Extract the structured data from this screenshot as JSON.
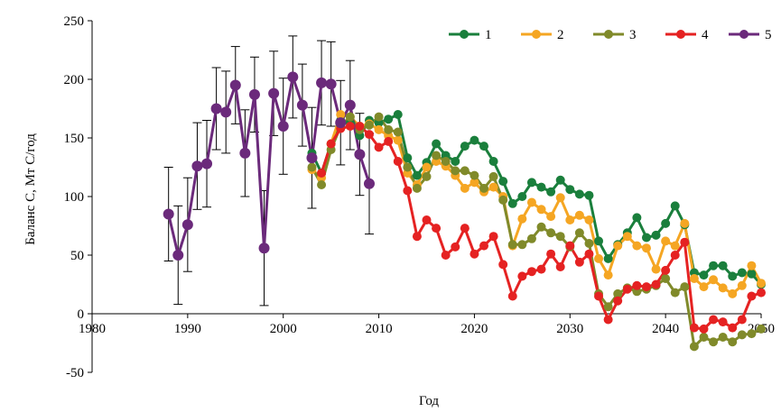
{
  "chart_data": {
    "type": "line",
    "title": "",
    "xlabel": "Год",
    "ylabel": "Баланс С, Мт С/год",
    "xlim": [
      1980,
      2050
    ],
    "ylim": [
      -50,
      250
    ],
    "xticks": [
      1980,
      1990,
      2000,
      2010,
      2020,
      2030,
      2040,
      2050
    ],
    "yticks": [
      -50,
      0,
      50,
      100,
      150,
      200,
      250
    ],
    "grid": false,
    "legend_position": "top-right",
    "series": [
      {
        "name": "1",
        "color": "#1a7f3c",
        "x": [
          2003,
          2004,
          2005,
          2006,
          2007,
          2008,
          2009,
          2010,
          2011,
          2012,
          2013,
          2014,
          2015,
          2016,
          2017,
          2018,
          2019,
          2020,
          2021,
          2022,
          2023,
          2024,
          2025,
          2026,
          2027,
          2028,
          2029,
          2030,
          2031,
          2032,
          2033,
          2034,
          2035,
          2036,
          2037,
          2038,
          2039,
          2040,
          2041,
          2042,
          2043,
          2044,
          2045,
          2046,
          2047,
          2048,
          2049,
          2050
        ],
        "y": [
          137,
          120,
          145,
          165,
          163,
          152,
          165,
          163,
          166,
          170,
          133,
          118,
          129,
          145,
          135,
          130,
          143,
          148,
          143,
          130,
          113,
          94,
          100,
          112,
          108,
          104,
          114,
          106,
          102,
          101,
          62,
          47,
          59,
          69,
          82,
          65,
          67,
          77,
          92,
          76,
          35,
          33,
          41,
          41,
          32,
          35,
          34,
          25
        ]
      },
      {
        "name": "2",
        "color": "#f5a623",
        "x": [
          2003,
          2004,
          2005,
          2006,
          2007,
          2008,
          2009,
          2010,
          2011,
          2012,
          2013,
          2014,
          2015,
          2016,
          2017,
          2018,
          2019,
          2020,
          2021,
          2022,
          2023,
          2024,
          2025,
          2026,
          2027,
          2028,
          2029,
          2030,
          2031,
          2032,
          2033,
          2034,
          2035,
          2036,
          2037,
          2038,
          2039,
          2040,
          2041,
          2042,
          2043,
          2044,
          2045,
          2046,
          2047,
          2048,
          2049,
          2050
        ],
        "y": [
          123,
          116,
          145,
          170,
          168,
          160,
          162,
          157,
          152,
          148,
          120,
          110,
          125,
          130,
          126,
          118,
          107,
          112,
          104,
          108,
          100,
          58,
          81,
          95,
          89,
          83,
          99,
          80,
          84,
          80,
          47,
          33,
          58,
          66,
          58,
          56,
          38,
          62,
          58,
          77,
          30,
          23,
          29,
          22,
          17,
          24,
          41,
          26
        ]
      },
      {
        "name": "3",
        "color": "#808a2a",
        "x": [
          2003,
          2004,
          2005,
          2006,
          2007,
          2008,
          2009,
          2010,
          2011,
          2012,
          2013,
          2014,
          2015,
          2016,
          2017,
          2018,
          2019,
          2020,
          2021,
          2022,
          2023,
          2024,
          2025,
          2026,
          2027,
          2028,
          2029,
          2030,
          2031,
          2032,
          2033,
          2034,
          2035,
          2036,
          2037,
          2038,
          2039,
          2040,
          2041,
          2042,
          2043,
          2044,
          2045,
          2046,
          2047,
          2048,
          2049,
          2050
        ],
        "y": [
          125,
          110,
          140,
          160,
          168,
          157,
          161,
          168,
          157,
          155,
          125,
          107,
          117,
          135,
          130,
          122,
          122,
          118,
          107,
          117,
          97,
          59,
          59,
          64,
          74,
          69,
          66,
          57,
          69,
          60,
          17,
          6,
          17,
          22,
          19,
          21,
          24,
          30,
          18,
          23,
          -28,
          -20,
          -24,
          -20,
          -24,
          -18,
          -17,
          -13
        ]
      },
      {
        "name": "4",
        "color": "#e52222",
        "x": [
          2004,
          2005,
          2006,
          2007,
          2008,
          2009,
          2010,
          2011,
          2012,
          2013,
          2014,
          2015,
          2016,
          2017,
          2018,
          2019,
          2020,
          2021,
          2022,
          2023,
          2024,
          2025,
          2026,
          2027,
          2028,
          2029,
          2030,
          2031,
          2032,
          2033,
          2034,
          2035,
          2036,
          2037,
          2038,
          2039,
          2040,
          2041,
          2042,
          2043,
          2044,
          2045,
          2046,
          2047,
          2048,
          2049,
          2050
        ],
        "y": [
          120,
          145,
          158,
          160,
          160,
          153,
          142,
          147,
          130,
          105,
          66,
          80,
          73,
          50,
          57,
          73,
          51,
          58,
          66,
          42,
          15,
          32,
          36,
          38,
          51,
          40,
          58,
          44,
          51,
          15,
          -5,
          11,
          21,
          24,
          23,
          25,
          37,
          50,
          61,
          -12,
          -13,
          -5,
          -7,
          -12,
          -5,
          15,
          18
        ]
      },
      {
        "name": "5",
        "color": "#6b2a7b",
        "x": [
          1988,
          1989,
          1990,
          1991,
          1992,
          1993,
          1994,
          1995,
          1996,
          1997,
          1998,
          1999,
          2000,
          2001,
          2002,
          2003,
          2004,
          2005,
          2006,
          2007,
          2008,
          2009
        ],
        "y": [
          85,
          50,
          76,
          126,
          128,
          175,
          172,
          195,
          137,
          187,
          56,
          188,
          160,
          202,
          178,
          133,
          197,
          196,
          163,
          178,
          136,
          111
        ],
        "err": [
          40,
          42,
          40,
          37,
          37,
          35,
          35,
          33,
          37,
          32,
          49,
          36,
          41,
          35,
          35,
          43,
          36,
          36,
          36,
          38,
          35,
          43
        ]
      }
    ]
  }
}
